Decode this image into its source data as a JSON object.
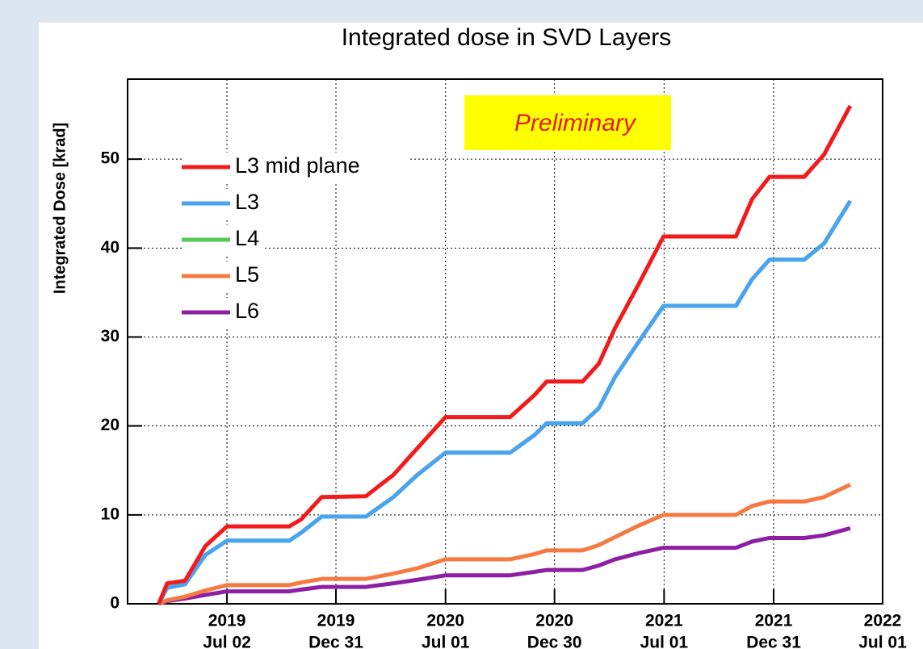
{
  "chart_data": {
    "type": "line",
    "title": "Integrated dose in SVD Layers",
    "y_label": "Integrated Dose [krad]",
    "annotation": "Preliminary",
    "legend": "upper left",
    "grid": true,
    "x": [
      "2019-03-10",
      "2019-03-24",
      "2019-04-23",
      "2019-05-27",
      "2019-07-02",
      "2019-10-14",
      "2019-11-03",
      "2019-12-07",
      "2020-02-19",
      "2020-04-05",
      "2020-05-15",
      "2020-07-01",
      "2020-10-17",
      "2020-11-27",
      "2020-12-17",
      "2021-02-15",
      "2021-03-14",
      "2021-04-10",
      "2021-05-20",
      "2021-06-30",
      "2021-10-29",
      "2021-11-25",
      "2021-12-24",
      "2022-02-20",
      "2022-03-25",
      "2022-05-08"
    ],
    "xlim": [
      "2019-01-17",
      "2022-07-01"
    ],
    "xticks": [
      {
        "value": "2019-07-02",
        "label": [
          "2019",
          "Jul 02"
        ]
      },
      {
        "value": "2019-12-31",
        "label": [
          "2019",
          "Dec 31"
        ]
      },
      {
        "value": "2020-07-01",
        "label": [
          "2020",
          "Jul 01"
        ]
      },
      {
        "value": "2020-12-30",
        "label": [
          "2020",
          "Dec 30"
        ]
      },
      {
        "value": "2021-07-01",
        "label": [
          "2021",
          "Jul 01"
        ]
      },
      {
        "value": "2021-12-31",
        "label": [
          "2021",
          "Dec 31"
        ]
      },
      {
        "value": "2022-07-01",
        "label": [
          "2022",
          "Jul 01"
        ]
      }
    ],
    "ylim": [
      0,
      59
    ],
    "yticks": [
      0,
      10,
      20,
      30,
      40,
      50
    ],
    "series": [
      {
        "name": "L3 mid plane",
        "color": "#f21a1a",
        "values": [
          0,
          2.3,
          2.6,
          6.5,
          8.7,
          8.7,
          9.5,
          12,
          12.1,
          14.5,
          17.5,
          21,
          21,
          23.5,
          25,
          25,
          27,
          31,
          36,
          41.3,
          41.3,
          45.5,
          48,
          48,
          50.5,
          56
        ]
      },
      {
        "name": "L3",
        "color": "#4aa3f0",
        "values": [
          0,
          1.8,
          2.2,
          5.5,
          7.1,
          7.1,
          8,
          9.8,
          9.8,
          12,
          14.5,
          17,
          17,
          19,
          20.3,
          20.3,
          22,
          25.5,
          29.5,
          33.5,
          33.5,
          36.5,
          38.7,
          38.7,
          40.5,
          45.3
        ]
      },
      {
        "name": "L4",
        "color": "#55c855",
        "values": [
          0,
          1.8,
          2.2,
          5.5,
          7.1,
          7.1,
          8,
          9.8,
          9.8,
          12,
          14.5,
          17,
          17,
          19,
          20.3,
          20.3,
          22,
          25.5,
          29.5,
          33.5,
          33.5,
          36.5,
          38.7,
          38.7,
          40.5,
          45.3
        ]
      },
      {
        "name": "L5",
        "color": "#f47a42",
        "values": [
          0,
          0.4,
          0.8,
          1.5,
          2.1,
          2.1,
          2.4,
          2.8,
          2.8,
          3.4,
          4,
          5,
          5,
          5.6,
          6,
          6,
          6.6,
          7.5,
          8.8,
          10,
          10,
          11,
          11.5,
          11.5,
          12,
          13.4
        ]
      },
      {
        "name": "L6",
        "color": "#8c1fa3",
        "values": [
          0,
          0.3,
          0.6,
          1,
          1.4,
          1.4,
          1.6,
          1.9,
          1.9,
          2.3,
          2.7,
          3.2,
          3.2,
          3.6,
          3.8,
          3.8,
          4.3,
          5,
          5.7,
          6.3,
          6.3,
          7,
          7.4,
          7.4,
          7.7,
          8.5
        ]
      }
    ]
  }
}
